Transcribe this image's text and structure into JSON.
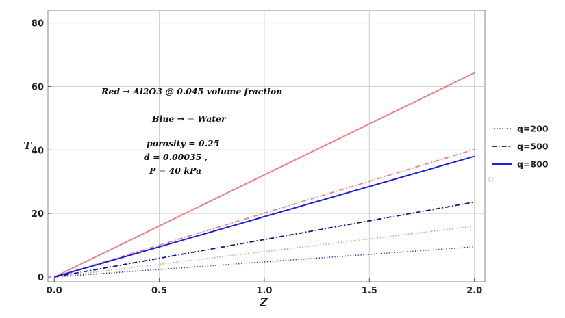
{
  "chart_data": {
    "type": "line",
    "xlabel": "Z",
    "ylabel": "T",
    "xlim": [
      -0.03,
      2.05
    ],
    "ylim": [
      -1.5,
      84
    ],
    "xticks": [
      0.0,
      0.5,
      1.0,
      1.5,
      2.0
    ],
    "xtick_labels": [
      "0.0",
      "0.5",
      "1.0",
      "1.5",
      "2.0"
    ],
    "yticks": [
      0,
      20,
      40,
      60,
      80
    ],
    "ytick_labels": [
      "0",
      "20",
      "40",
      "60",
      "80"
    ],
    "grid": true,
    "legend_position": "right",
    "legend": [
      {
        "label": "q=200",
        "style": "dotted",
        "color": "#2b2bd9"
      },
      {
        "label": "q=500",
        "style": "dashdot",
        "color": "#14148f"
      },
      {
        "label": "q=800",
        "style": "solid",
        "color": "#1f1fe0"
      }
    ],
    "annotations": [
      "Red →  Al2O3 @ 0.045 volume fraction",
      "Blue → = Water",
      "porosity = 0.25",
      "d = 0.00035 ,",
      "P = 40 kPa"
    ],
    "series": [
      {
        "fluid": "Al2O3",
        "q": "q=200",
        "color": "#f08080",
        "style": "dotted",
        "x": [
          0,
          2
        ],
        "y": [
          0,
          16
        ]
      },
      {
        "fluid": "Al2O3",
        "q": "q=500",
        "color": "#f08080",
        "style": "dashdot",
        "x": [
          0,
          2
        ],
        "y": [
          0,
          40.2
        ]
      },
      {
        "fluid": "Al2O3",
        "q": "q=800",
        "color": "#f08080",
        "style": "solid",
        "x": [
          0,
          2
        ],
        "y": [
          0,
          64.3
        ]
      },
      {
        "fluid": "Water",
        "q": "q=200",
        "color": "#2b2bd9",
        "style": "dotted",
        "x": [
          0,
          2
        ],
        "y": [
          0,
          9.5
        ]
      },
      {
        "fluid": "Water",
        "q": "q=500",
        "color": "#14148f",
        "style": "dashdot",
        "x": [
          0,
          2
        ],
        "y": [
          0,
          23.6
        ]
      },
      {
        "fluid": "Water",
        "q": "q=800",
        "color": "#1f1fe0",
        "style": "solid",
        "x": [
          0,
          2
        ],
        "y": [
          0,
          38
        ]
      }
    ]
  }
}
